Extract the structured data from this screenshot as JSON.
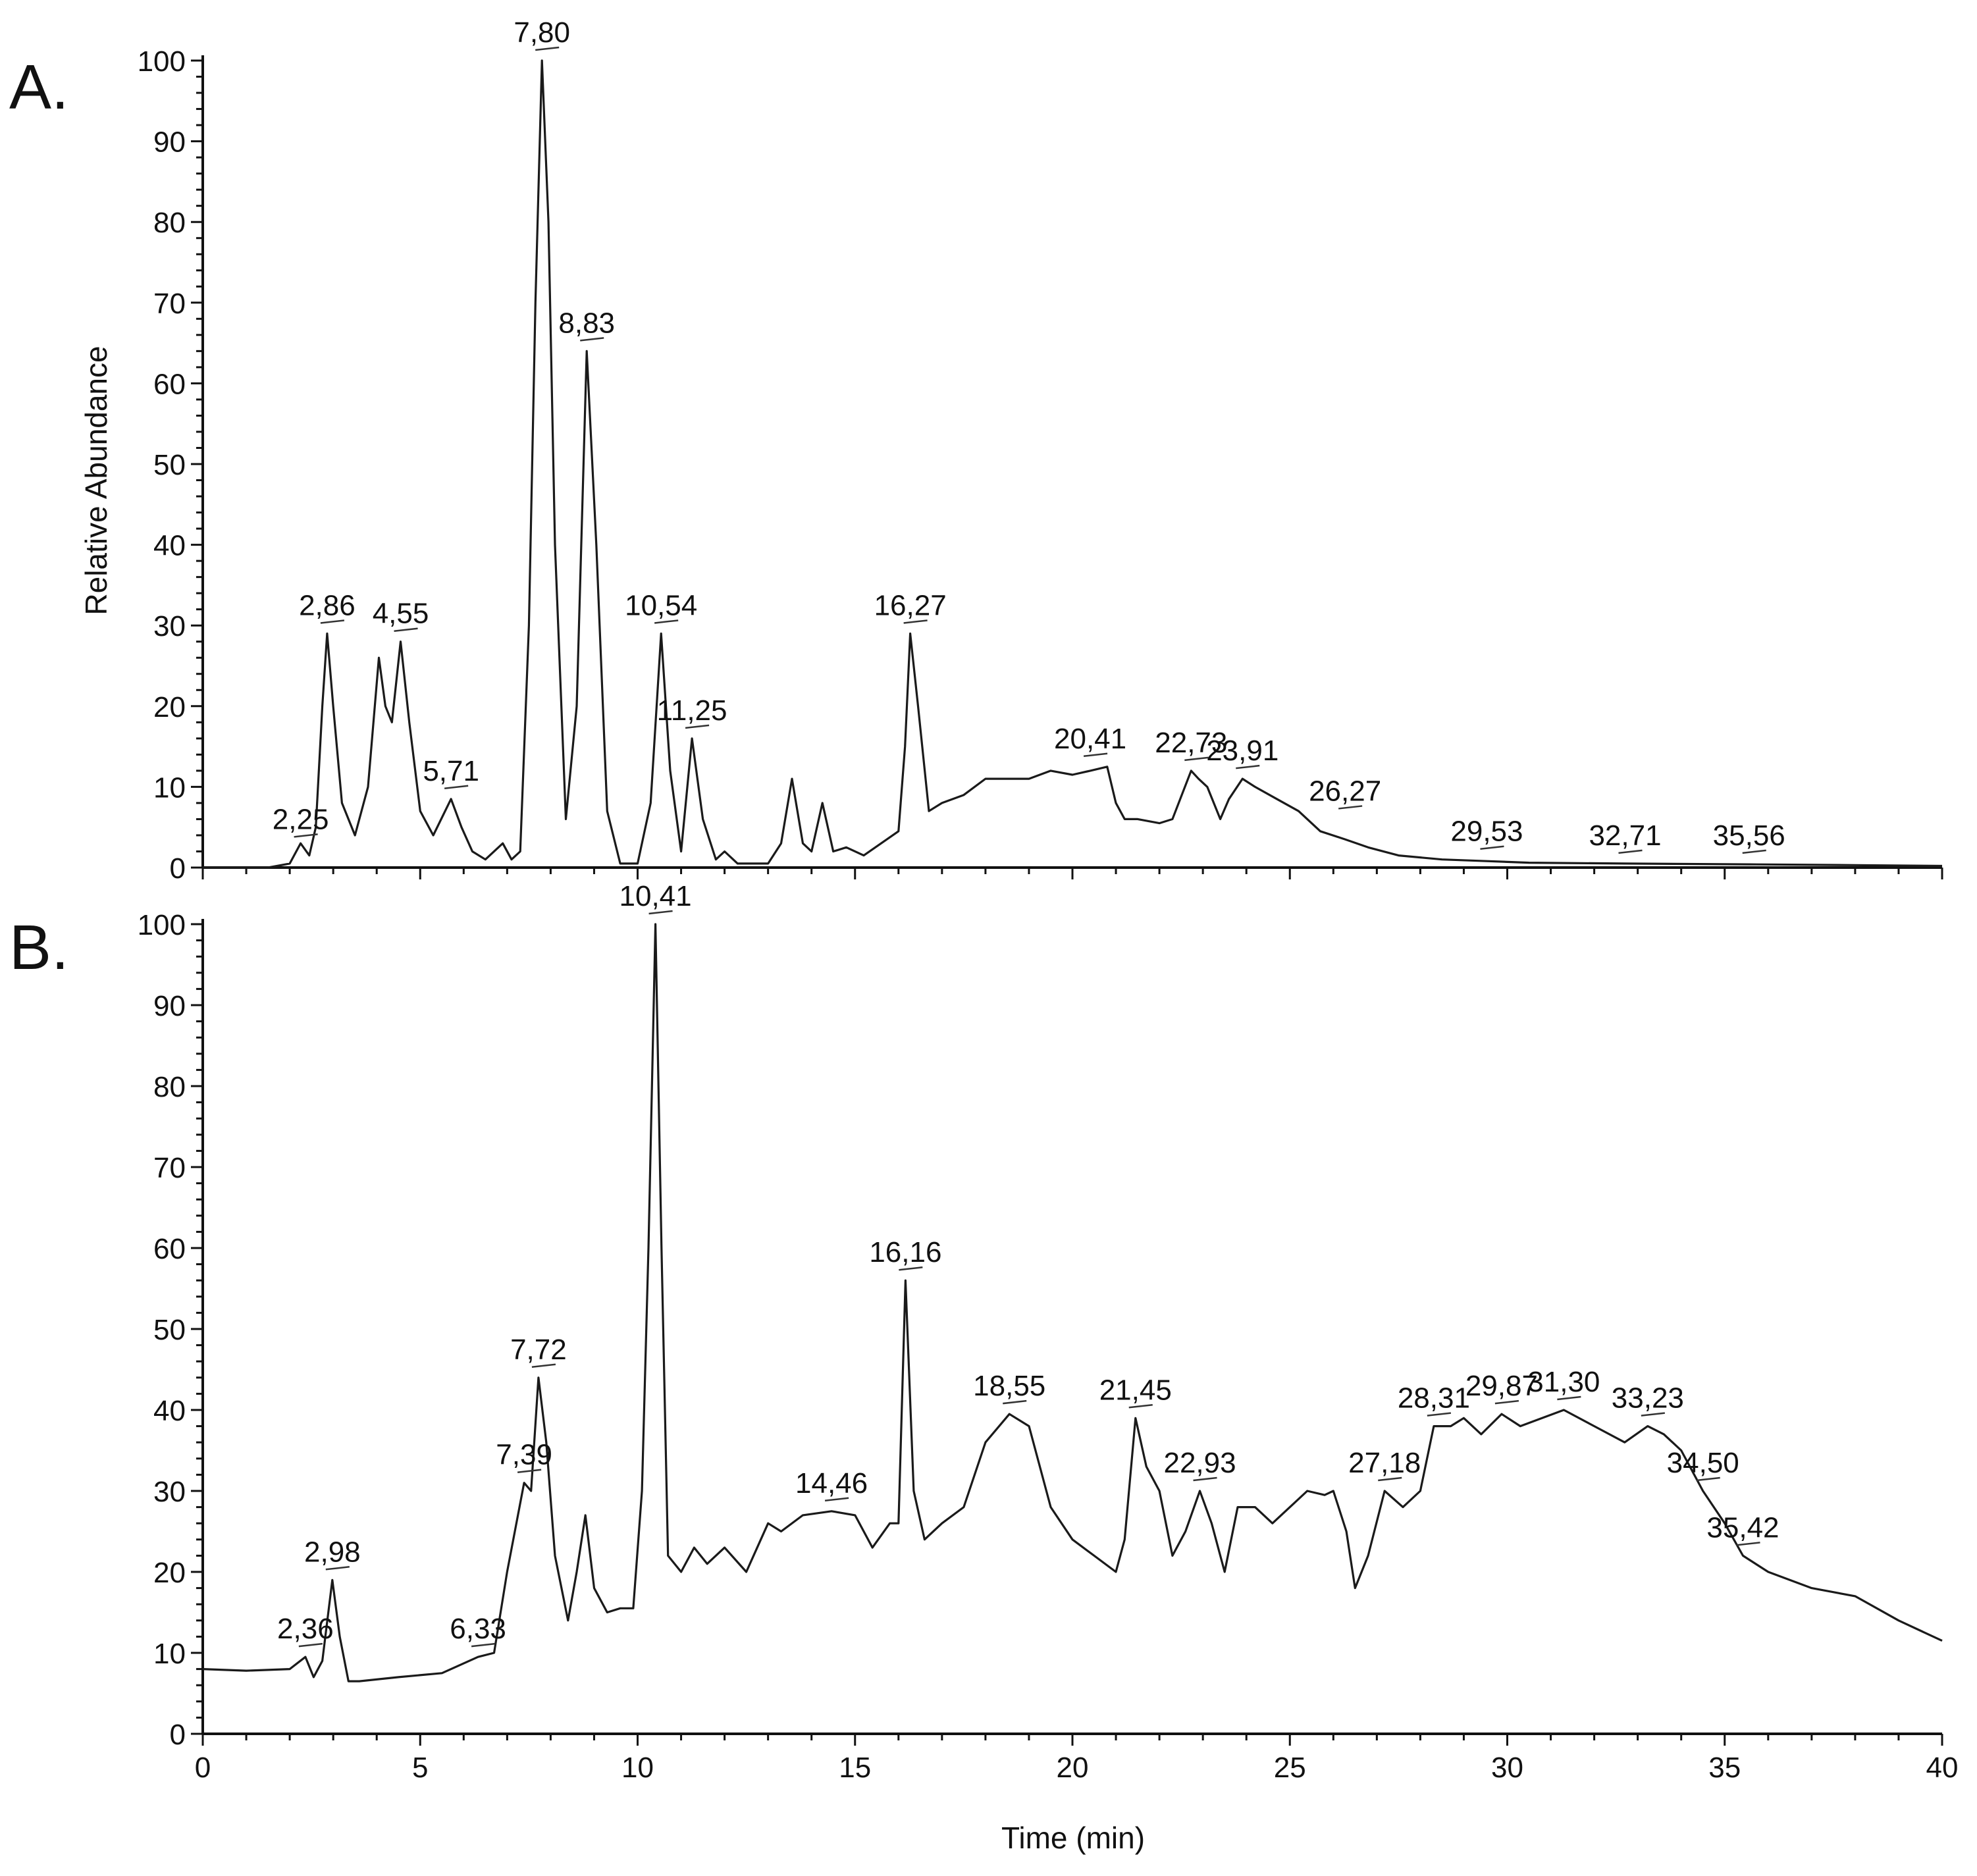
{
  "figure": {
    "xlabel": "Time (min)",
    "ylabel": "Relative Abundance"
  },
  "chart_data": [
    {
      "type": "line",
      "panel": "A.",
      "xlim": [
        0,
        40
      ],
      "ylim": [
        0,
        100
      ],
      "x_ticks": [
        0,
        5,
        10,
        15,
        20,
        25,
        30,
        35,
        40
      ],
      "x_tick_labels": [
        "0",
        "5",
        "10",
        "15",
        "20",
        "25",
        "30",
        "35",
        "40"
      ],
      "y_ticks": [
        0,
        10,
        20,
        30,
        40,
        50,
        60,
        70,
        80,
        90,
        100
      ],
      "y_tick_labels": [
        "0",
        "10",
        "20",
        "30",
        "40",
        "50",
        "60",
        "70",
        "80",
        "90",
        "100"
      ],
      "ylabel": "Relative Abundance",
      "xlabel": "",
      "series": [
        {
          "x": [
            0,
            1.5,
            2.0,
            2.25,
            2.45,
            2.6,
            2.75,
            2.86,
            3.0,
            3.2,
            3.5,
            3.8,
            4.05,
            4.2,
            4.35,
            4.55,
            4.75,
            5.0,
            5.3,
            5.71,
            5.95,
            6.2,
            6.5,
            6.9,
            7.1,
            7.3,
            7.5,
            7.65,
            7.8,
            7.95,
            8.1,
            8.35,
            8.6,
            8.83,
            9.05,
            9.3,
            9.6,
            10.0,
            10.3,
            10.54,
            10.75,
            11.0,
            11.25,
            11.5,
            11.8,
            12.0,
            12.3,
            13.0,
            13.3,
            13.55,
            13.8,
            14.0,
            14.25,
            14.5,
            14.8,
            15.2,
            15.6,
            16.0,
            16.15,
            16.27,
            16.45,
            16.7,
            17.0,
            17.5,
            18.0,
            18.5,
            19.0,
            19.5,
            20.0,
            20.41,
            20.8,
            21.0,
            21.2,
            21.5,
            22.0,
            22.3,
            22.73,
            22.9,
            23.1,
            23.4,
            23.6,
            23.91,
            24.2,
            24.7,
            25.2,
            25.7,
            26.27,
            26.8,
            27.5,
            28.5,
            29.53,
            30.5,
            32.71,
            35.56,
            38.0,
            40.0
          ],
          "y": [
            0,
            0,
            0.5,
            3.0,
            1.5,
            5.0,
            20.0,
            29.0,
            20.0,
            8.0,
            4.0,
            10.0,
            26.0,
            20.0,
            18.0,
            28.0,
            18.0,
            7.0,
            4.0,
            8.5,
            5.0,
            2.0,
            1.0,
            3.0,
            1.0,
            2.0,
            30.0,
            70.0,
            100.0,
            80.0,
            40.0,
            6.0,
            20.0,
            64.0,
            40.0,
            7.0,
            0.5,
            0.5,
            8.0,
            29.0,
            12.0,
            2.0,
            16.0,
            6.0,
            1.0,
            2.0,
            0.5,
            0.5,
            3.0,
            11.0,
            3.0,
            2.0,
            8.0,
            2.0,
            2.5,
            1.5,
            3.0,
            4.5,
            15.0,
            29.0,
            20.0,
            7.0,
            8.0,
            9.0,
            11.0,
            11.0,
            11.0,
            12.0,
            11.5,
            12.0,
            12.5,
            8.0,
            6.0,
            6.0,
            5.5,
            6.0,
            12.0,
            11.0,
            10.0,
            6.0,
            8.5,
            11.0,
            10.0,
            8.5,
            7.0,
            4.5,
            3.5,
            2.5,
            1.5,
            1.0,
            0.8,
            0.6,
            0.5,
            0.4,
            0.3,
            0.2
          ]
        }
      ],
      "peak_labels": [
        {
          "text": "2,25",
          "x": 2.25,
          "y": 2.5
        },
        {
          "text": "2,86",
          "x": 2.86,
          "y": 29.0
        },
        {
          "text": "4,55",
          "x": 4.55,
          "y": 28.0
        },
        {
          "text": "5,71",
          "x": 5.71,
          "y": 8.5
        },
        {
          "text": "7,80",
          "x": 7.8,
          "y": 100.0
        },
        {
          "text": "8,83",
          "x": 8.83,
          "y": 64.0
        },
        {
          "text": "10,54",
          "x": 10.54,
          "y": 29.0
        },
        {
          "text": "11,25",
          "x": 11.25,
          "y": 16.0
        },
        {
          "text": "16,27",
          "x": 16.27,
          "y": 29.0
        },
        {
          "text": "20,41",
          "x": 20.41,
          "y": 12.5
        },
        {
          "text": "22,73",
          "x": 22.73,
          "y": 12.0
        },
        {
          "text": "23,91",
          "x": 23.91,
          "y": 11.0
        },
        {
          "text": "26,27",
          "x": 26.27,
          "y": 6.0
        },
        {
          "text": "29,53",
          "x": 29.53,
          "y": 1.0
        },
        {
          "text": "32,71",
          "x": 32.71,
          "y": 0.5
        },
        {
          "text": "35,56",
          "x": 35.56,
          "y": 0.5
        }
      ]
    },
    {
      "type": "line",
      "panel": "B.",
      "xlim": [
        0,
        40
      ],
      "ylim": [
        0,
        100
      ],
      "x_ticks": [
        0,
        5,
        10,
        15,
        20,
        25,
        30,
        35,
        40
      ],
      "x_tick_labels": [
        "0",
        "5",
        "10",
        "15",
        "20",
        "25",
        "30",
        "35",
        "40"
      ],
      "y_ticks": [
        0,
        10,
        20,
        30,
        40,
        50,
        60,
        70,
        80,
        90,
        100
      ],
      "y_tick_labels": [
        "0",
        "10",
        "20",
        "30",
        "40",
        "50",
        "60",
        "70",
        "80",
        "90",
        "100"
      ],
      "ylabel": "",
      "xlabel": "Time (min)",
      "series": [
        {
          "x": [
            0,
            1.0,
            2.0,
            2.36,
            2.55,
            2.75,
            2.98,
            3.15,
            3.35,
            3.6,
            4.5,
            5.5,
            6.33,
            6.7,
            7.0,
            7.39,
            7.55,
            7.72,
            7.9,
            8.1,
            8.4,
            8.6,
            8.8,
            9.0,
            9.3,
            9.6,
            9.9,
            10.1,
            10.25,
            10.41,
            10.55,
            10.7,
            11.0,
            11.3,
            11.6,
            12.0,
            12.5,
            13.0,
            13.3,
            13.8,
            14.46,
            15.0,
            15.4,
            15.8,
            16.0,
            16.16,
            16.35,
            16.6,
            17.0,
            17.5,
            18.0,
            18.55,
            19.0,
            19.5,
            20.0,
            20.5,
            21.0,
            21.2,
            21.45,
            21.7,
            22.0,
            22.3,
            22.6,
            22.93,
            23.2,
            23.5,
            23.8,
            24.2,
            24.6,
            25.0,
            25.4,
            25.8,
            26.0,
            26.3,
            26.5,
            26.8,
            27.18,
            27.6,
            28.0,
            28.31,
            28.7,
            29.0,
            29.4,
            29.87,
            30.3,
            31.3,
            32.0,
            32.7,
            33.23,
            33.6,
            34.0,
            34.5,
            35.0,
            35.42,
            36.0,
            37.0,
            38.0,
            39.0,
            40.0
          ],
          "y": [
            8.0,
            7.8,
            8.0,
            9.5,
            7.0,
            9.0,
            19.0,
            12.0,
            6.5,
            6.5,
            7.0,
            7.5,
            9.5,
            10.0,
            20.0,
            31.0,
            30.0,
            44.0,
            36.0,
            22.0,
            14.0,
            20.0,
            27.0,
            18.0,
            15.0,
            15.5,
            15.5,
            30.0,
            60.0,
            100.0,
            60.0,
            22.0,
            20.0,
            23.0,
            21.0,
            23.0,
            20.0,
            26.0,
            25.0,
            27.0,
            27.5,
            27.0,
            23.0,
            26.0,
            26.0,
            56.0,
            30.0,
            24.0,
            26.0,
            28.0,
            36.0,
            39.5,
            38.0,
            28.0,
            24.0,
            22.0,
            20.0,
            24.0,
            39.0,
            33.0,
            30.0,
            22.0,
            25.0,
            30.0,
            26.0,
            20.0,
            28.0,
            28.0,
            26.0,
            28.0,
            30.0,
            29.5,
            30.0,
            25.0,
            18.0,
            22.0,
            30.0,
            28.0,
            30.0,
            38.0,
            38.0,
            39.0,
            37.0,
            39.5,
            38.0,
            40.0,
            38.0,
            36.0,
            38.0,
            37.0,
            35.0,
            30.0,
            26.0,
            22.0,
            20.0,
            18.0,
            17.0,
            14.0,
            11.5
          ]
        }
      ],
      "peak_labels": [
        {
          "text": "2,36",
          "x": 2.36,
          "y": 9.5
        },
        {
          "text": "2,98",
          "x": 2.98,
          "y": 19.0
        },
        {
          "text": "6,33",
          "x": 6.33,
          "y": 9.5
        },
        {
          "text": "7,39",
          "x": 7.39,
          "y": 31.0
        },
        {
          "text": "7,72",
          "x": 7.72,
          "y": 44.0
        },
        {
          "text": "10,41",
          "x": 10.41,
          "y": 100.0
        },
        {
          "text": "14,46",
          "x": 14.46,
          "y": 27.5
        },
        {
          "text": "16,16",
          "x": 16.16,
          "y": 56.0
        },
        {
          "text": "18,55",
          "x": 18.55,
          "y": 39.5
        },
        {
          "text": "21,45",
          "x": 21.45,
          "y": 39.0
        },
        {
          "text": "22,93",
          "x": 22.93,
          "y": 30.0
        },
        {
          "text": "27,18",
          "x": 27.18,
          "y": 30.0
        },
        {
          "text": "28,31",
          "x": 28.31,
          "y": 38.0
        },
        {
          "text": "29,87",
          "x": 29.87,
          "y": 39.5
        },
        {
          "text": "31,30",
          "x": 31.3,
          "y": 40.0
        },
        {
          "text": "33,23",
          "x": 33.23,
          "y": 38.0
        },
        {
          "text": "34,50",
          "x": 34.5,
          "y": 30.0
        },
        {
          "text": "35,42",
          "x": 35.42,
          "y": 22.0
        }
      ]
    }
  ]
}
